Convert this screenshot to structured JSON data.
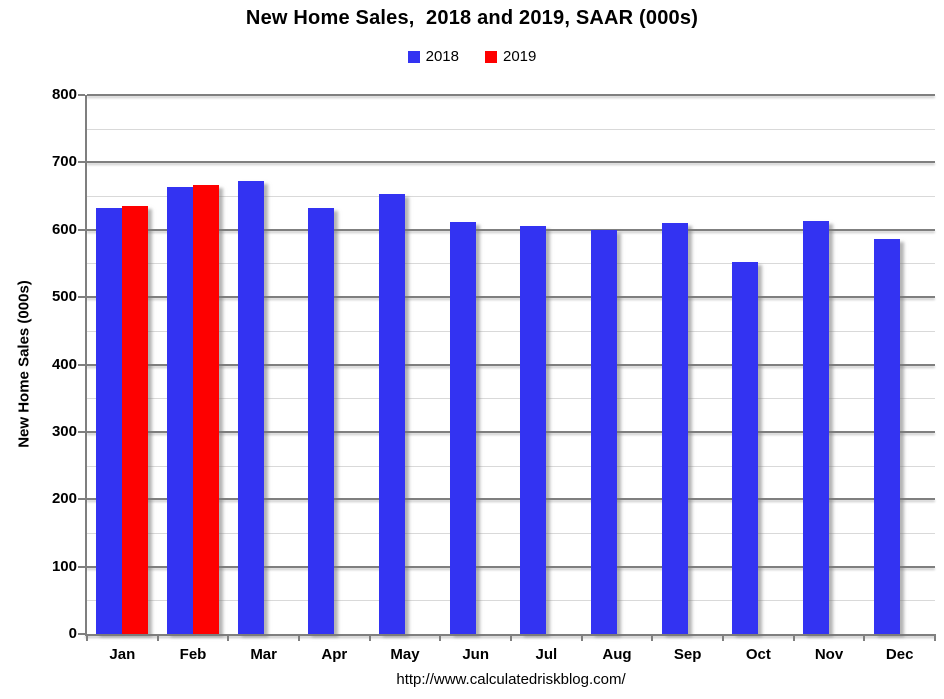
{
  "header": {
    "title": "New Home Sales,  2018 and 2019, SAAR (000s)"
  },
  "footer": {
    "url": "http://www.calculatedriskblog.com/"
  },
  "chart_data": {
    "type": "bar",
    "title": "New Home Sales,  2018 and 2019, SAAR (000s)",
    "categories": [
      "Jan",
      "Feb",
      "Mar",
      "Apr",
      "May",
      "Jun",
      "Jul",
      "Aug",
      "Sep",
      "Oct",
      "Nov",
      "Dec"
    ],
    "series": [
      {
        "name": "2018",
        "color": "#3333f2",
        "values": [
          633,
          663,
          672,
          633,
          653,
          612,
          606,
          600,
          610,
          552,
          613,
          587
        ]
      },
      {
        "name": "2019",
        "color": "#fe0000",
        "values": [
          636,
          667,
          null,
          null,
          null,
          null,
          null,
          null,
          null,
          null,
          null,
          null
        ]
      }
    ],
    "xlabel": "",
    "ylabel": "New Home Sales (000s)",
    "ylim": [
      0,
      800
    ],
    "ytick_major": 100,
    "ytick_minor": 50,
    "grid": true,
    "legend_position": "top-center",
    "colors": {
      "grid_major": "#7f7f7f",
      "grid_minor": "#d9d9d9",
      "axis": "#7f7f7f",
      "text": "#000000",
      "background": "#ffffff"
    }
  }
}
